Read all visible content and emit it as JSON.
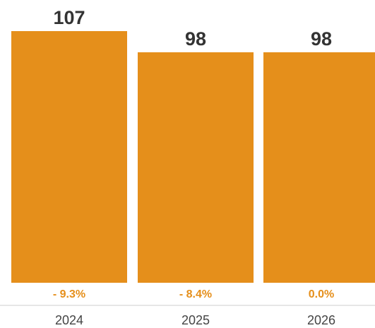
{
  "chart_data": {
    "type": "bar",
    "categories": [
      "2024",
      "2025",
      "2026"
    ],
    "values": [
      107,
      98,
      98
    ],
    "value_labels": [
      "107",
      "98",
      "98"
    ],
    "change_labels": [
      "- 9.3%",
      "- 8.4%",
      "0.0%"
    ],
    "ylim": [
      0,
      107
    ],
    "grid": false,
    "legend": "none",
    "colors": {
      "bar": "#E58F1B",
      "change_text": "#E58F1B",
      "value_text": "#333333",
      "tick_text": "#444444",
      "axis_line": "#cccccc"
    }
  }
}
